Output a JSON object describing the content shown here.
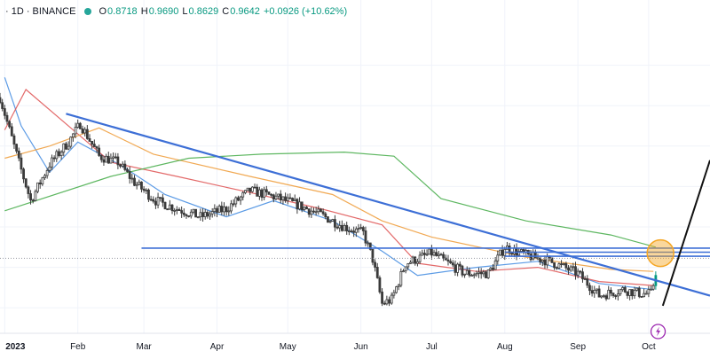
{
  "header": {
    "symbol": "· 1D · BINANCE",
    "ohlc": {
      "o_label": "O",
      "o": "0.8718",
      "h_label": "H",
      "h": "0.9690",
      "l_label": "L",
      "l": "0.8629",
      "c_label": "C",
      "c": "0.9642",
      "change": "+0.0926 (+10.62%)"
    }
  },
  "icons": {
    "status": "market-open-dot",
    "event": "lightning-icon"
  },
  "colors": {
    "up": "#089981",
    "down": "#f23645",
    "candle": "#3a3a3a",
    "trendline": "#3d6fd6",
    "ma_fast": "#4a90e2",
    "ma_mid": "#e05a5a",
    "ma_slow": "#f0a040",
    "ma_long": "#4caf50",
    "highlight": "#f5a623",
    "arrow": "#111111"
  },
  "chart_data": {
    "type": "candlestick",
    "x_ticks": [
      "2023",
      "Feb",
      "Mar",
      "Apr",
      "May",
      "Jun",
      "Jul",
      "Aug",
      "Sep",
      "Oct"
    ],
    "x_tick_dates": [
      "2023-01-01",
      "2023-02-01",
      "2023-03-01",
      "2023-04-01",
      "2023-05-01",
      "2023-06-01",
      "2023-07-01",
      "2023-08-01",
      "2023-09-01",
      "2023-10-01"
    ],
    "x_range": [
      "2022-12-30",
      "2023-10-27"
    ],
    "ylim": [
      0.7,
      2.2
    ],
    "price_path": [
      {
        "date": "2022-12-30",
        "price": 1.84
      },
      {
        "date": "2023-01-07",
        "price": 1.52
      },
      {
        "date": "2023-01-12",
        "price": 1.33
      },
      {
        "date": "2023-01-20",
        "price": 1.51
      },
      {
        "date": "2023-01-28",
        "price": 1.62
      },
      {
        "date": "2023-02-02",
        "price": 1.71
      },
      {
        "date": "2023-02-10",
        "price": 1.55
      },
      {
        "date": "2023-02-18",
        "price": 1.52
      },
      {
        "date": "2023-02-25",
        "price": 1.42
      },
      {
        "date": "2023-03-06",
        "price": 1.33
      },
      {
        "date": "2023-03-15",
        "price": 1.29
      },
      {
        "date": "2023-03-25",
        "price": 1.25
      },
      {
        "date": "2023-04-05",
        "price": 1.29
      },
      {
        "date": "2023-04-15",
        "price": 1.38
      },
      {
        "date": "2023-04-25",
        "price": 1.35
      },
      {
        "date": "2023-05-05",
        "price": 1.31
      },
      {
        "date": "2023-05-15",
        "price": 1.26
      },
      {
        "date": "2023-05-25",
        "price": 1.2
      },
      {
        "date": "2023-06-02",
        "price": 1.17
      },
      {
        "date": "2023-06-06",
        "price": 1.04
      },
      {
        "date": "2023-06-10",
        "price": 0.82
      },
      {
        "date": "2023-06-14",
        "price": 0.84
      },
      {
        "date": "2023-06-20",
        "price": 1.02
      },
      {
        "date": "2023-07-01",
        "price": 1.07
      },
      {
        "date": "2023-07-15",
        "price": 0.97
      },
      {
        "date": "2023-07-25",
        "price": 0.97
      },
      {
        "date": "2023-08-01",
        "price": 1.1
      },
      {
        "date": "2023-08-10",
        "price": 1.06
      },
      {
        "date": "2023-08-20",
        "price": 1.03
      },
      {
        "date": "2023-09-01",
        "price": 0.97
      },
      {
        "date": "2023-09-10",
        "price": 0.86
      },
      {
        "date": "2023-09-20",
        "price": 0.89
      },
      {
        "date": "2023-09-28",
        "price": 0.87
      },
      {
        "date": "2023-10-02",
        "price": 0.87
      },
      {
        "date": "2023-10-04",
        "price": 0.96
      }
    ],
    "moving_averages": [
      {
        "color_key": "ma_fast",
        "points": [
          {
            "date": "2023-01-01",
            "price": 1.94
          },
          {
            "date": "2023-01-08",
            "price": 1.7
          },
          {
            "date": "2023-01-20",
            "price": 1.47
          },
          {
            "date": "2023-02-01",
            "price": 1.62
          },
          {
            "date": "2023-02-20",
            "price": 1.5
          },
          {
            "date": "2023-03-10",
            "price": 1.36
          },
          {
            "date": "2023-04-05",
            "price": 1.25
          },
          {
            "date": "2023-04-25",
            "price": 1.33
          },
          {
            "date": "2023-05-20",
            "price": 1.23
          },
          {
            "date": "2023-06-10",
            "price": 1.08
          },
          {
            "date": "2023-06-25",
            "price": 0.96
          },
          {
            "date": "2023-07-20",
            "price": 1.0
          },
          {
            "date": "2023-08-15",
            "price": 1.03
          },
          {
            "date": "2023-09-10",
            "price": 0.92
          },
          {
            "date": "2023-10-03",
            "price": 0.89
          }
        ]
      },
      {
        "color_key": "ma_mid",
        "points": [
          {
            "date": "2023-01-01",
            "price": 1.68
          },
          {
            "date": "2023-01-10",
            "price": 1.88
          },
          {
            "date": "2023-01-25",
            "price": 1.73
          },
          {
            "date": "2023-02-15",
            "price": 1.52
          },
          {
            "date": "2023-03-15",
            "price": 1.45
          },
          {
            "date": "2023-04-15",
            "price": 1.37
          },
          {
            "date": "2023-05-15",
            "price": 1.29
          },
          {
            "date": "2023-06-10",
            "price": 1.21
          },
          {
            "date": "2023-06-25",
            "price": 1.02
          },
          {
            "date": "2023-07-20",
            "price": 0.98
          },
          {
            "date": "2023-08-15",
            "price": 1.0
          },
          {
            "date": "2023-09-10",
            "price": 0.93
          },
          {
            "date": "2023-10-03",
            "price": 0.91
          }
        ]
      },
      {
        "color_key": "ma_slow",
        "points": [
          {
            "date": "2023-01-01",
            "price": 1.54
          },
          {
            "date": "2023-01-20",
            "price": 1.6
          },
          {
            "date": "2023-02-10",
            "price": 1.69
          },
          {
            "date": "2023-03-05",
            "price": 1.56
          },
          {
            "date": "2023-04-15",
            "price": 1.45
          },
          {
            "date": "2023-05-20",
            "price": 1.36
          },
          {
            "date": "2023-06-10",
            "price": 1.23
          },
          {
            "date": "2023-07-01",
            "price": 1.15
          },
          {
            "date": "2023-08-10",
            "price": 1.05
          },
          {
            "date": "2023-09-15",
            "price": 0.99
          },
          {
            "date": "2023-10-03",
            "price": 0.98
          }
        ]
      },
      {
        "color_key": "ma_long",
        "points": [
          {
            "date": "2023-01-01",
            "price": 1.28
          },
          {
            "date": "2023-02-15",
            "price": 1.45
          },
          {
            "date": "2023-03-20",
            "price": 1.54
          },
          {
            "date": "2023-04-20",
            "price": 1.56
          },
          {
            "date": "2023-05-25",
            "price": 1.57
          },
          {
            "date": "2023-06-15",
            "price": 1.55
          },
          {
            "date": "2023-07-05",
            "price": 1.34
          },
          {
            "date": "2023-08-10",
            "price": 1.23
          },
          {
            "date": "2023-09-15",
            "price": 1.16
          },
          {
            "date": "2023-10-04",
            "price": 1.1
          }
        ]
      }
    ],
    "trendline": {
      "start": {
        "date": "2023-01-27",
        "price": 1.76
      },
      "end": {
        "date": "2023-10-27",
        "price": 0.86
      }
    },
    "horizontal_levels": [
      {
        "start": "2023-02-28",
        "end": "2023-10-27",
        "price": 1.095
      },
      {
        "start": "2023-08-01",
        "end": "2023-10-27",
        "price": 1.075
      },
      {
        "start": "2023-08-01",
        "end": "2023-10-27",
        "price": 1.055
      }
    ],
    "dotted_level": 1.045,
    "highlight": {
      "date": "2023-10-06",
      "price": 1.07
    },
    "projection_arrow": {
      "start": {
        "date": "2023-10-07",
        "price": 0.81
      },
      "end": {
        "date": "2023-10-27",
        "price": 1.53
      }
    },
    "event_marker": {
      "date": "2023-10-05"
    }
  }
}
